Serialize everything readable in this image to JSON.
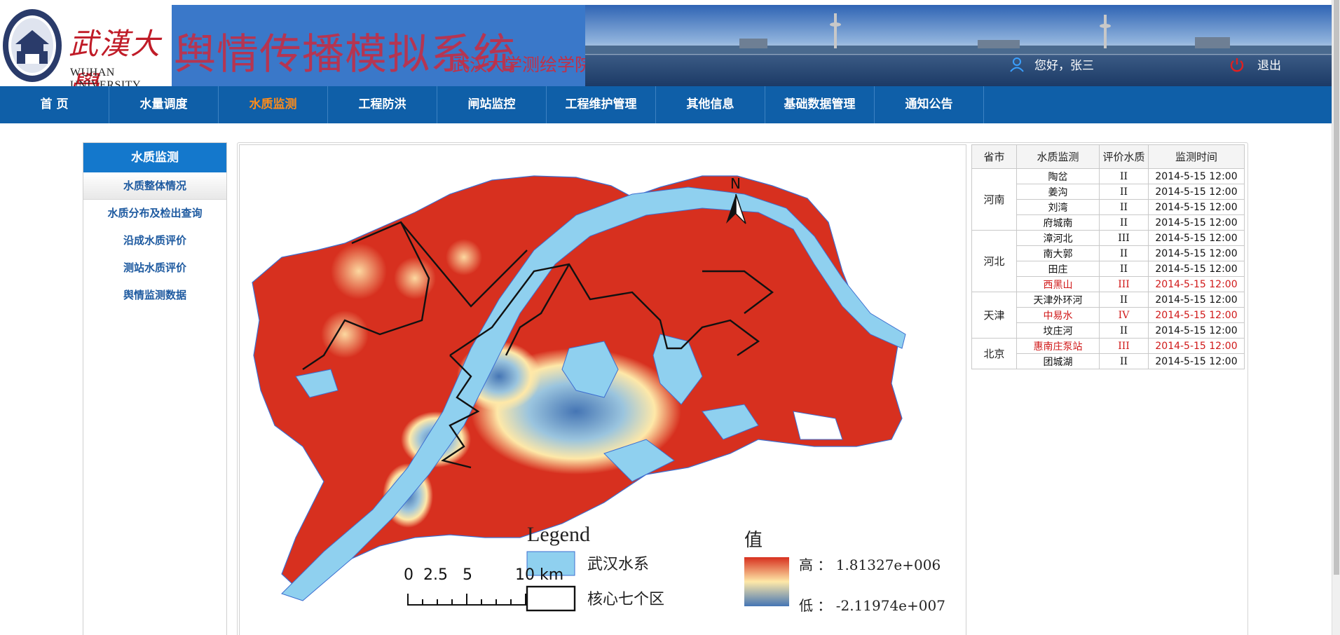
{
  "header": {
    "logo_cn": "武漢大學",
    "logo_en": "WUHAN UNIVERSITY",
    "system_title": "舆情传播模拟系统",
    "system_subtitle": "武汉大学测绘学院",
    "greeting": "您好，张三",
    "logout": "退出"
  },
  "nav": {
    "items": [
      "首 页",
      "水量调度",
      "水质监测",
      "工程防洪",
      "闸站监控",
      "工程维护管理",
      "其他信息",
      "基础数据管理",
      "通知公告"
    ],
    "active_index": 2
  },
  "sidebar": {
    "title": "水质监测",
    "items": [
      "水质整体情况",
      "水质分布及检出查询",
      "沿成水质评价",
      "测站水质评价",
      "舆情监测数据"
    ],
    "active_index": 0
  },
  "map": {
    "north": "N",
    "legend_title": "Legend",
    "legend_water": "武汉水系",
    "legend_core": "核心七个区",
    "value_title": "值",
    "high_label": "高 ： 1.81327e+006",
    "low_label": "低 ： -2.11974e+007",
    "scale_labels": [
      "0",
      "2.5",
      "5",
      "10 km"
    ],
    "colors": {
      "high": "#d7301f",
      "mid": "#fee8a8",
      "low": "#4575b4",
      "water": "#8fd0ef"
    }
  },
  "table": {
    "headers": [
      "省市",
      "水质监测",
      "评价水质",
      "监测时间"
    ],
    "groups": [
      {
        "province": "河南",
        "rows": [
          {
            "station": "陶岔",
            "grade": "II",
            "time": "2014-5-15 12:00",
            "alert": false
          },
          {
            "station": "姜沟",
            "grade": "II",
            "time": "2014-5-15 12:00",
            "alert": false
          },
          {
            "station": "刘湾",
            "grade": "II",
            "time": "2014-5-15 12:00",
            "alert": false
          },
          {
            "station": "府城南",
            "grade": "II",
            "time": "2014-5-15 12:00",
            "alert": false
          }
        ]
      },
      {
        "province": "河北",
        "rows": [
          {
            "station": "漳河北",
            "grade": "III",
            "time": "2014-5-15 12:00",
            "alert": false
          },
          {
            "station": "南大郭",
            "grade": "II",
            "time": "2014-5-15 12:00",
            "alert": false
          },
          {
            "station": "田庄",
            "grade": "II",
            "time": "2014-5-15 12:00",
            "alert": false
          },
          {
            "station": "西黑山",
            "grade": "III",
            "time": "2014-5-15 12:00",
            "alert": true
          }
        ]
      },
      {
        "province": "天津",
        "rows": [
          {
            "station": "天津外环河",
            "grade": "II",
            "time": "2014-5-15 12:00",
            "alert": false
          },
          {
            "station": "中易水",
            "grade": "IV",
            "time": "2014-5-15 12:00",
            "alert": true
          },
          {
            "station": "坟庄河",
            "grade": "II",
            "time": "2014-5-15 12:00",
            "alert": false
          }
        ]
      },
      {
        "province": "北京",
        "rows": [
          {
            "station": "惠南庄泵站",
            "grade": "III",
            "time": "2014-5-15 12:00",
            "alert": true
          },
          {
            "station": "团城湖",
            "grade": "II",
            "time": "2014-5-15 12:00",
            "alert": false
          }
        ]
      }
    ]
  }
}
